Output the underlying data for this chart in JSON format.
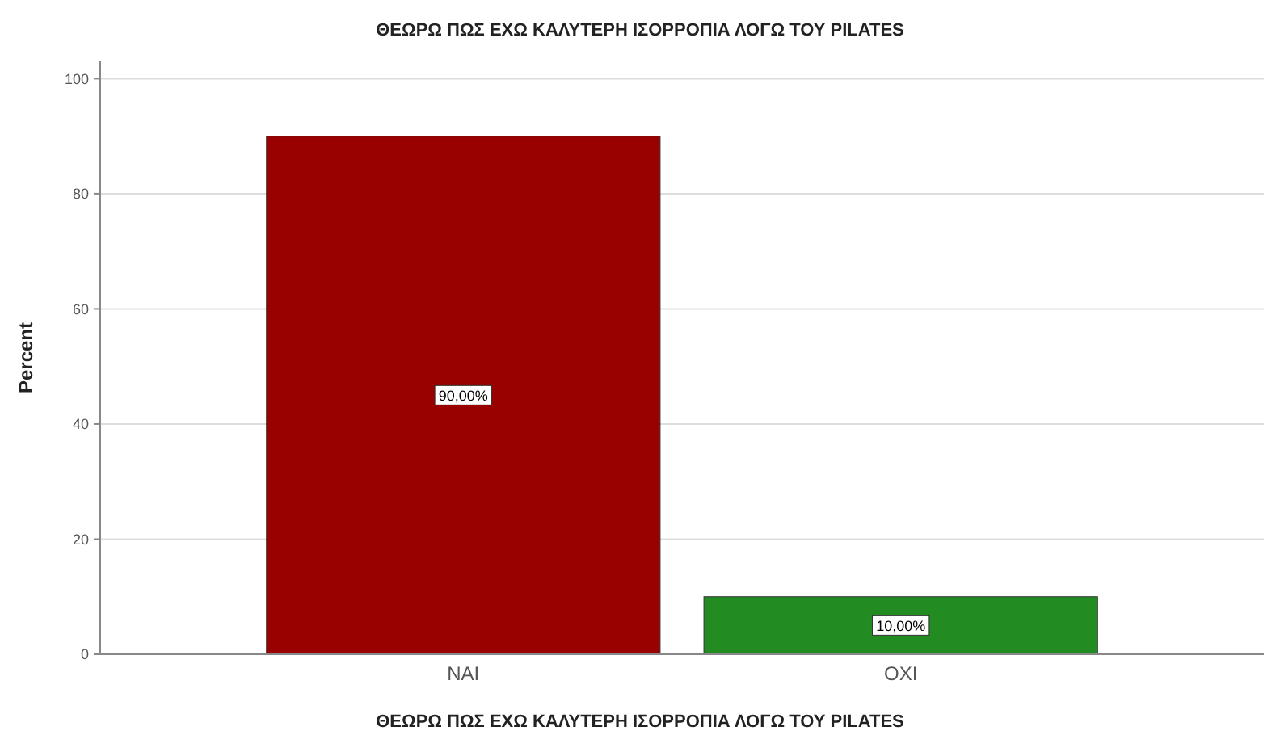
{
  "chart_data": {
    "type": "bar",
    "title": "ΘΕΩΡΩ ΠΩΣ ΕΧΩ ΚΑΛΥΤΕΡΗ ΙΣΟΡΡΟΠΙΑ ΛΟΓΩ ΤΟΥ PILATES",
    "xlabel": "ΘΕΩΡΩ ΠΩΣ ΕΧΩ ΚΑΛΥΤΕΡΗ ΙΣΟΡΡΟΠΙΑ ΛΟΓΩ ΤΟΥ PILATES",
    "ylabel": "Percent",
    "categories": [
      "ΝΑΙ",
      "ΟΧΙ"
    ],
    "values": [
      90,
      10
    ],
    "colors": [
      "#990000",
      "#228b22"
    ],
    "value_labels": [
      "90,00%",
      "10,00%"
    ],
    "ylim": [
      0,
      103
    ],
    "yticks": [
      0,
      20,
      40,
      60,
      80,
      100
    ],
    "grid": "y"
  }
}
